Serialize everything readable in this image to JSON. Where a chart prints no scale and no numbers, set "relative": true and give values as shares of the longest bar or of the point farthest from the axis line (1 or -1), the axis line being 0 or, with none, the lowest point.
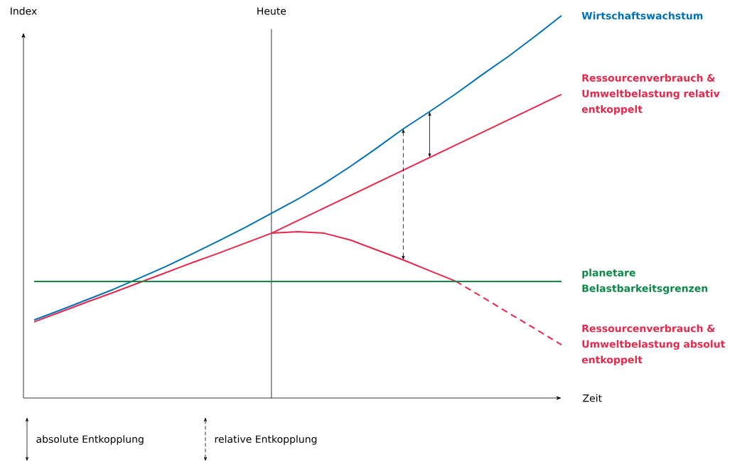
{
  "chart_data": {
    "type": "line",
    "relative": true,
    "xlabel": "Zeit",
    "ylabel": "Index",
    "categories": [
      null,
      null,
      null,
      null,
      null,
      null,
      null,
      null,
      null,
      null,
      null,
      null,
      null,
      null,
      null,
      null,
      null,
      null,
      null,
      null,
      null
    ],
    "series": [
      {
        "name": "Wirtschaftswachstum",
        "color": "#0070b8",
        "values": [
          0.204,
          0.23,
          0.257,
          0.284,
          0.314,
          0.344,
          0.377,
          0.411,
          0.446,
          0.483,
          0.52,
          0.561,
          0.606,
          0.654,
          0.704,
          0.749,
          0.796,
          0.846,
          0.894,
          0.946,
          1.0
        ]
      },
      {
        "name": "Ressourcenverbrauch & Umweltbelastung relativ entkoppelt",
        "color": "#e8274a",
        "values": [
          0.199,
          0.225,
          0.251,
          0.276,
          0.302,
          0.328,
          0.354,
          0.379,
          0.405,
          0.431,
          0.464,
          0.497,
          0.53,
          0.563,
          0.596,
          0.629,
          0.662,
          0.695,
          0.728,
          0.761,
          0.794
        ]
      },
      {
        "color": "#e8274a",
        "values": [
          null,
          null,
          null,
          null,
          null,
          null,
          null,
          null,
          null,
          0.431,
          0.435,
          0.431,
          0.413,
          0.387,
          0.361,
          0.333,
          0.305,
          null,
          null,
          null,
          null
        ]
      },
      {
        "name": "Ressourcenverbrauch & Umweltbelastung absolut entkoppelt",
        "color": "#e8274a",
        "line_style": "dashed",
        "values": [
          null,
          null,
          null,
          null,
          null,
          null,
          null,
          null,
          null,
          null,
          null,
          null,
          null,
          null,
          null,
          null,
          0.305,
          0.264,
          0.222,
          0.181,
          0.139
        ]
      },
      {
        "name": "planetare Belastbarkeitsgrenzen",
        "color": "#0a8a47",
        "values": [
          0.305,
          0.305,
          0.305,
          0.305,
          0.305,
          0.305,
          0.305,
          0.305,
          0.305,
          0.305,
          0.305,
          0.305,
          0.305,
          0.305,
          0.305,
          0.305,
          0.305,
          0.305,
          0.305,
          0.305,
          0.305
        ]
      }
    ],
    "annotations": [
      "absolute Entkopplung",
      "relative Entkopplung",
      "Heute"
    ]
  }
}
